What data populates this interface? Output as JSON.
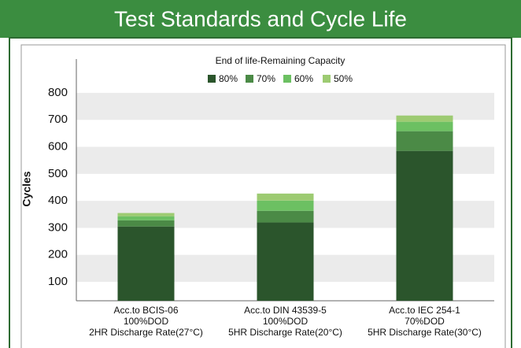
{
  "chart_data": {
    "type": "stacked_bar",
    "title": "Test Standards and Cycle Life",
    "legend_title": "End of life-Remaining Capacity",
    "ylabel": "Cycles",
    "categories": [
      [
        "Acc.to BCIS-06",
        "100%DOD",
        "2HR Discharge Rate(27°C)"
      ],
      [
        "Acc.to DIN 43539-5",
        "100%DOD",
        "5HR Discharge Rate(20°C)"
      ],
      [
        "Acc.to IEC 254-1",
        "70%DOD",
        "5HR Discharge Rate(30°C)"
      ]
    ],
    "series": [
      {
        "name": "80%",
        "color": "#2b552c",
        "values": [
          275,
          290,
          555
        ]
      },
      {
        "name": "70%",
        "color": "#4b8a46",
        "values": [
          23,
          43,
          73
        ]
      },
      {
        "name": "60%",
        "color": "#6cc062",
        "values": [
          15,
          38,
          35
        ]
      },
      {
        "name": "50%",
        "color": "#9dcb72",
        "values": [
          12,
          26,
          23
        ]
      }
    ],
    "ylim": [
      30,
      845
    ],
    "yticks": [
      100,
      200,
      300,
      400,
      500,
      600,
      700,
      800
    ],
    "banded_grid": true
  }
}
